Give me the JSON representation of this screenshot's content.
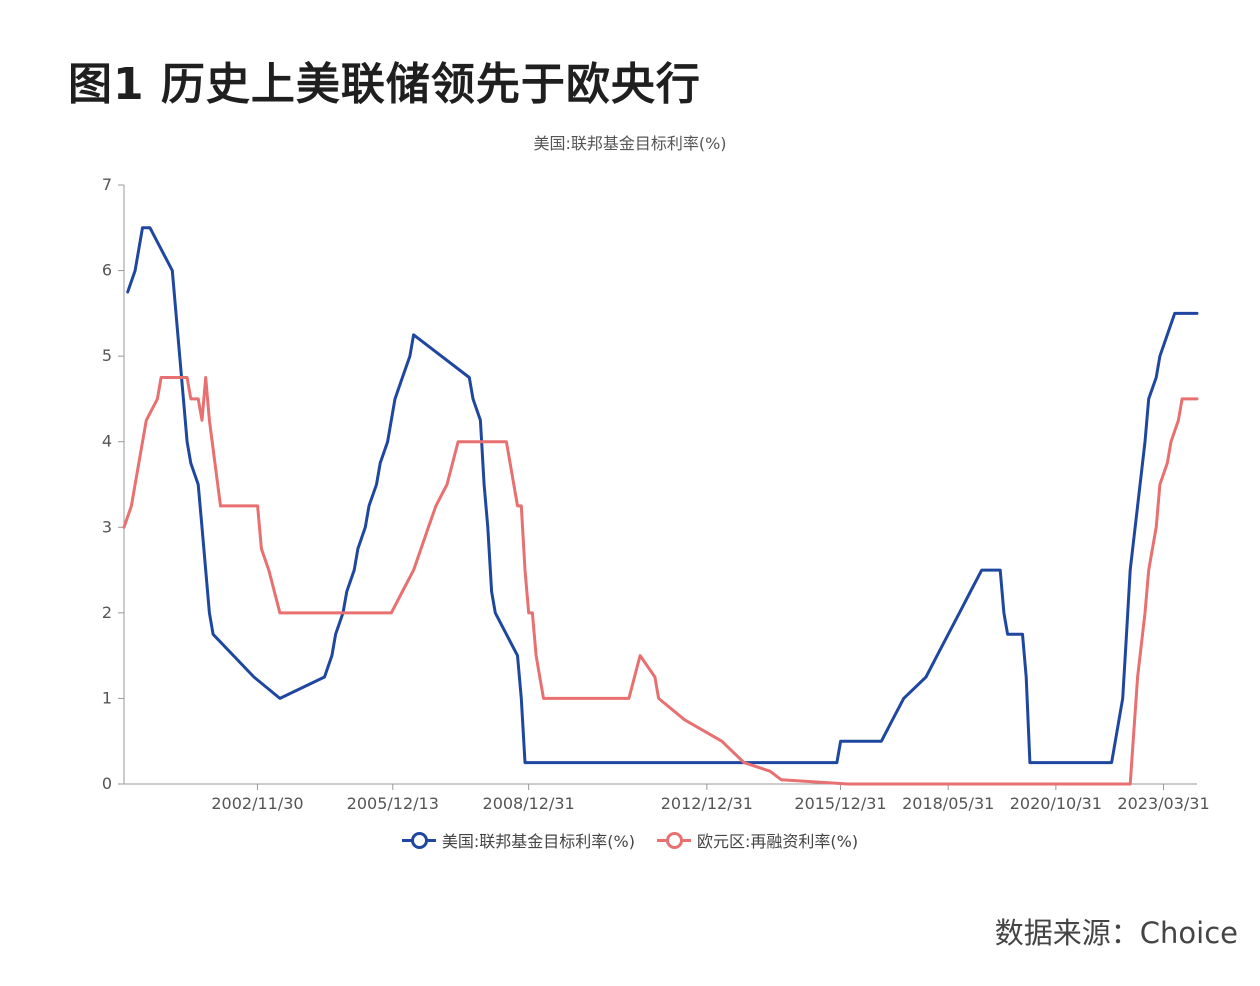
{
  "figure_title": "图1  历史上美联储领先于欧央行",
  "source": "数据来源：Choice",
  "chart_data": {
    "type": "line",
    "title": "美国:联邦基金目标利率(%)",
    "xlabel": "",
    "ylabel": "",
    "ylim": [
      0,
      7
    ],
    "yticks": [
      "0",
      "1",
      "2",
      "3",
      "4",
      "5",
      "6",
      "7"
    ],
    "xticks": [
      "2002/11/30",
      "2005/12/13",
      "2008/12/31",
      "2012/12/31",
      "2015/12/31",
      "2018/05/31",
      "2020/10/31",
      "2023/03/31"
    ],
    "xrange": [
      "2000-01",
      "2024-12"
    ],
    "grid": false,
    "legend_position": "bottom",
    "series": [
      {
        "name": "美国:联邦基金目标利率(%)",
        "color": "#1f47a0",
        "points": [
          [
            "2000-01",
            5.75
          ],
          [
            "2000-03",
            6.0
          ],
          [
            "2000-05",
            6.5
          ],
          [
            "2000-07",
            6.5
          ],
          [
            "2001-01",
            6.0
          ],
          [
            "2001-02",
            5.5
          ],
          [
            "2001-03",
            5.0
          ],
          [
            "2001-04",
            4.5
          ],
          [
            "2001-05",
            4.0
          ],
          [
            "2001-06",
            3.75
          ],
          [
            "2001-08",
            3.5
          ],
          [
            "2001-09",
            3.0
          ],
          [
            "2001-10",
            2.5
          ],
          [
            "2001-11",
            2.0
          ],
          [
            "2001-12",
            1.75
          ],
          [
            "2002-11",
            1.25
          ],
          [
            "2003-06",
            1.0
          ],
          [
            "2004-06",
            1.25
          ],
          [
            "2004-08",
            1.5
          ],
          [
            "2004-09",
            1.75
          ],
          [
            "2004-11",
            2.0
          ],
          [
            "2004-12",
            2.25
          ],
          [
            "2005-02",
            2.5
          ],
          [
            "2005-03",
            2.75
          ],
          [
            "2005-05",
            3.0
          ],
          [
            "2005-06",
            3.25
          ],
          [
            "2005-08",
            3.5
          ],
          [
            "2005-09",
            3.75
          ],
          [
            "2005-11",
            4.0
          ],
          [
            "2005-12",
            4.25
          ],
          [
            "2006-01",
            4.5
          ],
          [
            "2006-03",
            4.75
          ],
          [
            "2006-05",
            5.0
          ],
          [
            "2006-06",
            5.25
          ],
          [
            "2007-09",
            4.75
          ],
          [
            "2007-10",
            4.5
          ],
          [
            "2007-12",
            4.25
          ],
          [
            "2008-01",
            3.5
          ],
          [
            "2008-02",
            3.0
          ],
          [
            "2008-03",
            2.25
          ],
          [
            "2008-04",
            2.0
          ],
          [
            "2008-10",
            1.5
          ],
          [
            "2008-11",
            1.0
          ],
          [
            "2008-12",
            0.25
          ],
          [
            "2015-12",
            0.25
          ],
          [
            "2016-01",
            0.5
          ],
          [
            "2016-12",
            0.5
          ],
          [
            "2017-03",
            0.75
          ],
          [
            "2017-06",
            1.0
          ],
          [
            "2017-12",
            1.25
          ],
          [
            "2018-03",
            1.5
          ],
          [
            "2018-06",
            1.75
          ],
          [
            "2018-09",
            2.0
          ],
          [
            "2018-12",
            2.25
          ],
          [
            "2019-03",
            2.5
          ],
          [
            "2019-08",
            2.5
          ],
          [
            "2019-09",
            2.0
          ],
          [
            "2019-10",
            1.75
          ],
          [
            "2020-02",
            1.75
          ],
          [
            "2020-03",
            1.25
          ],
          [
            "2020-04",
            0.25
          ],
          [
            "2022-02",
            0.25
          ],
          [
            "2022-03",
            0.5
          ],
          [
            "2022-05",
            1.0
          ],
          [
            "2022-06",
            1.75
          ],
          [
            "2022-07",
            2.5
          ],
          [
            "2022-09",
            3.25
          ],
          [
            "2022-11",
            4.0
          ],
          [
            "2022-12",
            4.5
          ],
          [
            "2023-02",
            4.75
          ],
          [
            "2023-03",
            5.0
          ],
          [
            "2023-05",
            5.25
          ],
          [
            "2023-07",
            5.5
          ],
          [
            "2024-12",
            5.5
          ]
        ]
      },
      {
        "name": "欧元区:再融资利率(%)",
        "color": "#e87070",
        "points": [
          [
            "1999-12",
            3.0
          ],
          [
            "2000-02",
            3.25
          ],
          [
            "2000-03",
            3.5
          ],
          [
            "2000-04",
            3.75
          ],
          [
            "2000-06",
            4.25
          ],
          [
            "2000-09",
            4.5
          ],
          [
            "2000-10",
            4.75
          ],
          [
            "2001-05",
            4.75
          ],
          [
            "2001-06",
            4.5
          ],
          [
            "2001-08",
            4.5
          ],
          [
            "2001-09",
            4.25
          ],
          [
            "2001-10",
            4.75
          ],
          [
            "2001-11",
            4.25
          ],
          [
            "2002-02",
            3.25
          ],
          [
            "2002-12",
            3.25
          ],
          [
            "2003-01",
            2.75
          ],
          [
            "2003-03",
            2.5
          ],
          [
            "2003-06",
            2.0
          ],
          [
            "2005-12",
            2.0
          ],
          [
            "2006-03",
            2.25
          ],
          [
            "2006-06",
            2.5
          ],
          [
            "2006-08",
            2.75
          ],
          [
            "2006-10",
            3.0
          ],
          [
            "2006-12",
            3.25
          ],
          [
            "2007-03",
            3.5
          ],
          [
            "2007-06",
            4.0
          ],
          [
            "2008-07",
            4.0
          ],
          [
            "2008-10",
            3.25
          ],
          [
            "2008-11",
            3.25
          ],
          [
            "2008-12",
            2.5
          ],
          [
            "2009-01",
            2.0
          ],
          [
            "2009-02",
            2.0
          ],
          [
            "2009-03",
            1.5
          ],
          [
            "2009-05",
            1.0
          ],
          [
            "2011-04",
            1.0
          ],
          [
            "2011-07",
            1.5
          ],
          [
            "2011-11",
            1.25
          ],
          [
            "2011-12",
            1.0
          ],
          [
            "2012-07",
            0.75
          ],
          [
            "2013-05",
            0.5
          ],
          [
            "2013-11",
            0.25
          ],
          [
            "2014-06",
            0.15
          ],
          [
            "2014-09",
            0.05
          ],
          [
            "2016-03",
            0.0
          ],
          [
            "2022-07",
            0.0
          ],
          [
            "2022-09",
            1.25
          ],
          [
            "2022-11",
            2.0
          ],
          [
            "2022-12",
            2.5
          ],
          [
            "2023-02",
            3.0
          ],
          [
            "2023-03",
            3.5
          ],
          [
            "2023-05",
            3.75
          ],
          [
            "2023-06",
            4.0
          ],
          [
            "2023-08",
            4.25
          ],
          [
            "2023-09",
            4.5
          ],
          [
            "2024-12",
            4.5
          ]
        ]
      }
    ]
  }
}
